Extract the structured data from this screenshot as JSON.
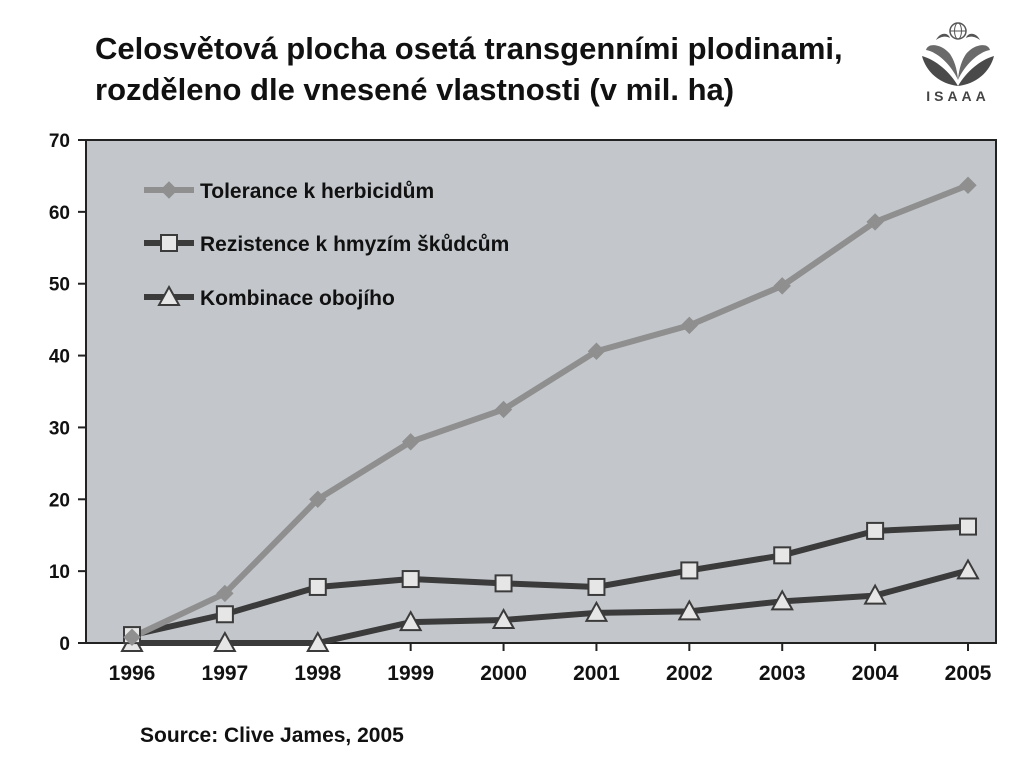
{
  "title": {
    "line1": "Celosvětová plocha osetá transgenními plodinami,",
    "line2": "rozděleno dle vnesené vlastnosti  (v mil. ha)"
  },
  "logo": {
    "text": "ISAAA",
    "icon": "isaaa-leaves-globe-logo"
  },
  "source": "Source: Clive James, 2005",
  "chart_data": {
    "type": "line",
    "x": [
      "1996",
      "1997",
      "1998",
      "1999",
      "2000",
      "2001",
      "2002",
      "2003",
      "2004",
      "2005"
    ],
    "ylim": [
      0,
      70
    ],
    "yticks": [
      0,
      10,
      20,
      30,
      40,
      50,
      60,
      70
    ],
    "grid": false,
    "legend_position": "top-left",
    "plot_background": "#c3c7cb",
    "series": [
      {
        "name": "Tolerance k herbicidům",
        "marker": "diamond",
        "color": "#8f8f8f",
        "values": [
          0.8,
          6.9,
          20.0,
          28.0,
          32.5,
          40.6,
          44.2,
          49.7,
          58.6,
          63.7
        ]
      },
      {
        "name": "Rezistence k hmyzím škůdcům",
        "marker": "square",
        "color": "#3b3b3b",
        "values": [
          1.1,
          4.0,
          7.8,
          8.9,
          8.3,
          7.8,
          10.1,
          12.2,
          15.6,
          16.2
        ]
      },
      {
        "name": "Kombinace obojího",
        "marker": "triangle",
        "color": "#3b3b3b",
        "values": [
          0.0,
          0.0,
          0.0,
          2.9,
          3.2,
          4.2,
          4.4,
          5.8,
          6.6,
          10.1
        ]
      }
    ]
  }
}
